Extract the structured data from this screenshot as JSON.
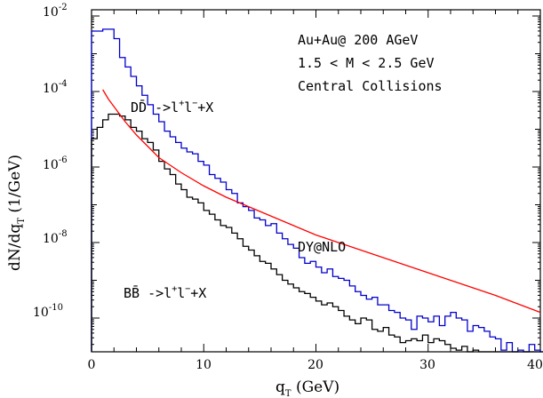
{
  "chart_data": {
    "type": "line",
    "title": "",
    "xlabel": "q_T (GeV)",
    "ylabel": "dN/dq_T (1/GeV)",
    "xlim": [
      0,
      40
    ],
    "ylim_log10": [
      -11,
      -2
    ],
    "y_scale": "log",
    "grid": false,
    "x_ticks": [
      0,
      10,
      20,
      30,
      40
    ],
    "y_ticks_log10": [
      -10,
      -8,
      -6,
      -4,
      -2
    ],
    "annotations": {
      "system": "Au+Au@ 200 AGeV",
      "mass_range": "1.5 < M < 2.5 GeV",
      "centrality": "Central Collisions"
    },
    "series": [
      {
        "name": "DD̄ ->l⁺l⁻+X",
        "color": "#0000cc",
        "style": "histogram",
        "bin_width": 0.5,
        "x_start": 0,
        "log10_values": [
          -2.4,
          -2.4,
          -2.35,
          -2.35,
          -2.6,
          -3.1,
          -3.35,
          -3.6,
          -3.85,
          -4.1,
          -4.35,
          -4.6,
          -4.8,
          -5.05,
          -5.2,
          -5.35,
          -5.5,
          -5.6,
          -5.65,
          -5.85,
          -5.95,
          -6.2,
          -6.3,
          -6.4,
          -6.6,
          -6.7,
          -6.95,
          -7.05,
          -7.15,
          -7.35,
          -7.4,
          -7.55,
          -7.5,
          -7.75,
          -7.9,
          -8.05,
          -8.15,
          -8.4,
          -8.55,
          -8.5,
          -8.65,
          -8.8,
          -8.7,
          -8.9,
          -8.95,
          -9.0,
          -9.15,
          -9.3,
          -9.4,
          -9.5,
          -9.45,
          -9.65,
          -9.65,
          -9.8,
          -9.85,
          -10.0,
          -10.05,
          -10.3,
          -9.95,
          -10.0,
          -10.1,
          -9.95,
          -10.2,
          -9.95,
          -9.85,
          -10.0,
          -10.05,
          -10.35,
          -10.2,
          -10.25,
          -10.35,
          -10.5,
          -10.55,
          -10.85,
          -10.65,
          -10.9,
          -10.85,
          -10.9,
          -10.7,
          -10.85,
          -11.1,
          -10.9,
          -11.1,
          -11.1,
          -10.95,
          -11.3,
          -11.3,
          -11.3,
          -11.3,
          -10.9,
          -11.3,
          -11.3,
          -11.3,
          -11.3,
          -11.3,
          -11.3,
          -11.3,
          -11.3,
          -11.3,
          -11.3
        ]
      },
      {
        "name": "BB̄ ->l⁺l⁻+X",
        "color": "#000000",
        "style": "histogram",
        "bin_width": 0.5,
        "x_start": 0,
        "log10_values": [
          -5.25,
          -4.95,
          -4.75,
          -4.6,
          -4.6,
          -4.65,
          -4.75,
          -4.95,
          -5.05,
          -5.25,
          -5.35,
          -5.55,
          -5.85,
          -6.05,
          -6.2,
          -6.45,
          -6.6,
          -6.8,
          -6.85,
          -6.95,
          -7.15,
          -7.25,
          -7.4,
          -7.55,
          -7.6,
          -7.75,
          -7.9,
          -8.1,
          -8.2,
          -8.35,
          -8.5,
          -8.55,
          -8.7,
          -8.85,
          -9.0,
          -9.1,
          -9.2,
          -9.3,
          -9.35,
          -9.45,
          -9.55,
          -9.65,
          -9.6,
          -9.7,
          -9.8,
          -9.95,
          -10.05,
          -10.15,
          -10.0,
          -10.05,
          -10.3,
          -10.35,
          -10.25,
          -10.45,
          -10.5,
          -10.65,
          -10.6,
          -10.55,
          -10.6,
          -10.45,
          -10.65,
          -10.55,
          -10.6,
          -10.7,
          -10.8,
          -10.85,
          -10.75,
          -10.9,
          -10.85,
          -10.95,
          -11.0,
          -11.1,
          -11.2,
          -11.05,
          -11.2,
          -11.1,
          -11.3,
          -11.3,
          -11.3,
          -11.3,
          -11.3,
          -11.3,
          -11.3,
          -11.3,
          -11.3,
          -11.3,
          -11.3,
          -11.3,
          -11.3,
          -11.3,
          -11.3,
          -11.3,
          -11.3,
          -11.3,
          -11.3,
          -11.3,
          -11.3,
          -11.3,
          -11.3,
          -11.3
        ]
      },
      {
        "name": "DY@NLO",
        "color": "#ff0000",
        "style": "smooth",
        "x": [
          1.0,
          1.5,
          2.0,
          3.0,
          4.0,
          5.0,
          6.0,
          7.0,
          8.0,
          10.0,
          12.0,
          14.0,
          16.0,
          18.0,
          20.0,
          22.0,
          25.0,
          28.0,
          30.0,
          33.0,
          36.0,
          40.0
        ],
        "log10_y": [
          -3.95,
          -4.2,
          -4.4,
          -4.8,
          -5.15,
          -5.45,
          -5.75,
          -5.95,
          -6.15,
          -6.5,
          -6.8,
          -7.05,
          -7.3,
          -7.55,
          -7.8,
          -8.0,
          -8.3,
          -8.6,
          -8.8,
          -9.1,
          -9.4,
          -9.85
        ]
      }
    ]
  },
  "labels": {
    "tick_x": [
      "0",
      "10",
      "20",
      "30",
      "40"
    ],
    "tick_y_base": "10",
    "tick_y_exp": [
      "-10",
      "-8",
      "-6",
      "-4",
      "-2"
    ],
    "ylabel_main": "dN/dq",
    "ylabel_sub": "T",
    "ylabel_units": " (1/GeV)",
    "xlabel_main": "q",
    "xlabel_sub": "T",
    "xlabel_units": " (GeV)",
    "dd_main": "DD̄ ->l",
    "dd_sup1": "+",
    "dd_mid": "l",
    "dd_sup2": "−",
    "dd_end": "+X",
    "bb_main": "BB̄ ->l",
    "bb_sup1": "+",
    "bb_mid": "l",
    "bb_sup2": "−",
    "bb_end": "+X",
    "dy": "DY@NLO",
    "annot1": "Au+Au@ 200 AGeV",
    "annot2": "1.5 < M < 2.5 GeV",
    "annot3": "Central Collisions"
  }
}
